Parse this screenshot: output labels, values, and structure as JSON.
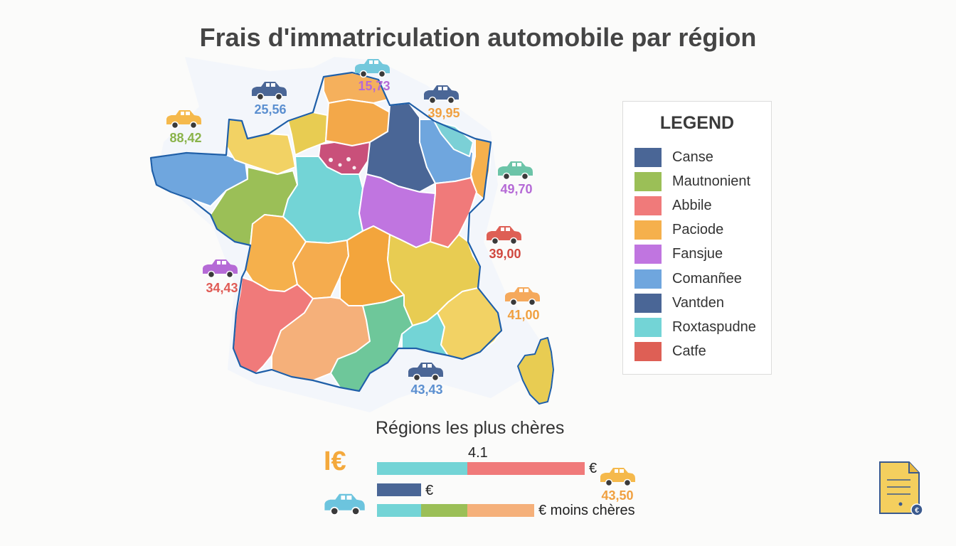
{
  "title": "Frais d'immatriculation automobile par région",
  "legend": {
    "title": "LEGEND",
    "items": [
      {
        "label": "Canse",
        "color": "#4a6696"
      },
      {
        "label": "Mautnonient",
        "color": "#9bbf57"
      },
      {
        "label": "Abbile",
        "color": "#f07a7a"
      },
      {
        "label": "Paciode",
        "color": "#f5b04c"
      },
      {
        "label": "Fansjue",
        "color": "#c075e0"
      },
      {
        "label": "Comanñee",
        "color": "#6fa6de"
      },
      {
        "label": "Vantden",
        "color": "#4a6696"
      },
      {
        "label": "Roxtaspudne",
        "color": "#73d4d6"
      },
      {
        "label": "Catfe",
        "color": "#de5f55"
      }
    ]
  },
  "car_markers": [
    {
      "value": "15,73",
      "car_color": "#73c8dc",
      "text_color": "#b56ad6"
    },
    {
      "value": "25,56",
      "car_color": "#4a6696",
      "text_color": "#5b8fd0"
    },
    {
      "value": "39,95",
      "car_color": "#4a6696",
      "text_color": "#f0a040"
    },
    {
      "value": "88,42",
      "car_color": "#f5b94c",
      "text_color": "#8ab34a"
    },
    {
      "value": "49,70",
      "car_color": "#6cc4a8",
      "text_color": "#b56ad6"
    },
    {
      "value": "39,00",
      "car_color": "#de5f55",
      "text_color": "#d0483f"
    },
    {
      "value": "34,43",
      "car_color": "#b56ad6",
      "text_color": "#e05b55"
    },
    {
      "value": "41,00",
      "car_color": "#f5a95c",
      "text_color": "#f0a040"
    },
    {
      "value": "43,43",
      "car_color": "#4a6696",
      "text_color": "#5b8fd0"
    },
    {
      "value": "43,50",
      "car_color": "#f5b94c",
      "text_color": "#f0a040"
    }
  ],
  "bars": {
    "title": "Régions les plus chères",
    "icon_text": "I€",
    "row1": {
      "value_label": "4.1",
      "unit": "€",
      "segments": [
        {
          "color": "#73d4d6"
        },
        {
          "color": "#f07a7a"
        }
      ]
    },
    "row2": {
      "unit": "€",
      "segments": [
        {
          "color": "#4a6696"
        }
      ]
    },
    "row3": {
      "unit": "€ moins chères",
      "segments": [
        {
          "color": "#73d4d6"
        },
        {
          "color": "#9bbf57"
        },
        {
          "color": "#f5b07a"
        }
      ]
    }
  }
}
